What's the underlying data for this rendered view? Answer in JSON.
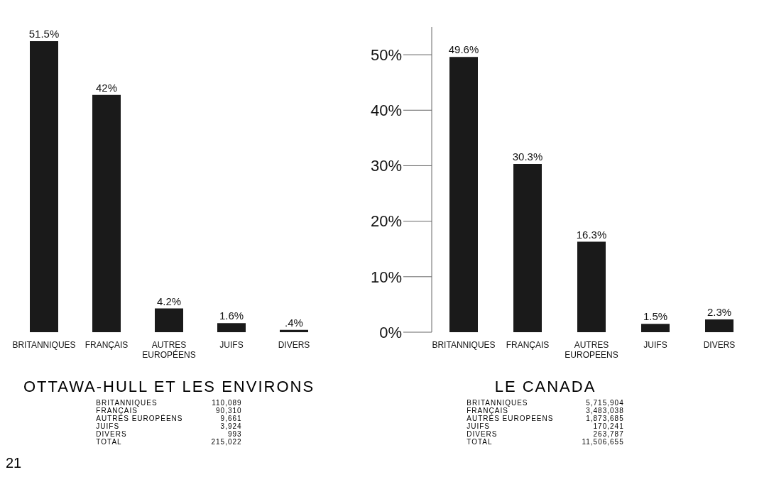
{
  "chart_data": [
    {
      "type": "bar",
      "title": "OTTAWA-HULL ET LES ENVIRONS",
      "categories": [
        "BRITANNIQUES",
        "FRANÇAIS",
        "AUTRES EUROPÉENS",
        "JUIFS",
        "DIVERS"
      ],
      "values": [
        51.5,
        42,
        4.2,
        1.6,
        0.4
      ],
      "value_labels": [
        "51.5%",
        "42%",
        "4.2%",
        "1.6%",
        ".4%"
      ],
      "color": "#1a1a1a",
      "tick_labels": "x",
      "grid": false,
      "legend": false,
      "annotations": [
        "BRITANNIQUES 110,089",
        "FRANÇAIS 90,310",
        "AUTRES EUROPÉENS 9,661",
        "JUIFS 3,924",
        "DIVERS 993",
        "TOTAL 215,022",
        "21"
      ]
    },
    {
      "type": "bar",
      "title": "LE CANADA",
      "categories": [
        "BRITANNIQUES",
        "FRANÇAIS",
        "AUTRES EUROPEENS",
        "JUIFS",
        "DIVERS"
      ],
      "values": [
        49.6,
        30.3,
        16.3,
        1.5,
        2.3
      ],
      "value_labels": [
        "49.6%",
        "30.3%",
        "16.3%",
        "1.5%",
        "2.3%"
      ],
      "color": "#1a1a1a",
      "ylim": [
        0,
        55
      ],
      "yticks": [
        {
          "value": 0,
          "label": "0%"
        },
        {
          "value": 10,
          "label": "10%"
        },
        {
          "value": 20,
          "label": "20%"
        },
        {
          "value": 30,
          "label": "30%"
        },
        {
          "value": 40,
          "label": "40%"
        },
        {
          "value": 50,
          "label": "50%"
        }
      ],
      "grid": false,
      "legend": false,
      "annotations": [
        "BRITANNIQUES 5,715,904",
        "FRANÇAIS 3,483,038",
        "AUTRES EUROPEENS 1,873,685",
        "JUIFS 170,241",
        "DIVERS 263,787",
        "TOTAL 11,506,655"
      ]
    }
  ]
}
